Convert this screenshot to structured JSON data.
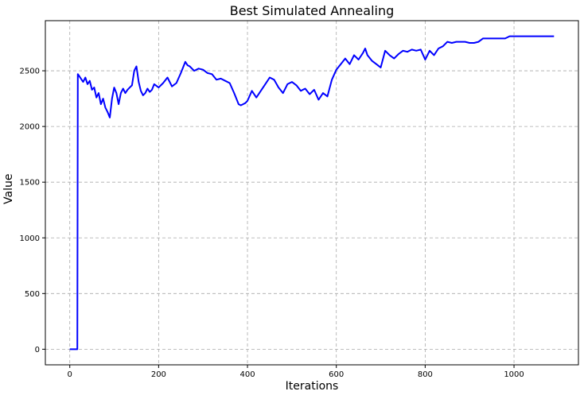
{
  "chart_data": {
    "type": "line",
    "title": "Best Simulated Annealing",
    "xlabel": "Iterations",
    "ylabel": "Value",
    "xlim": [
      -55,
      1145
    ],
    "ylim": [
      -140,
      2950
    ],
    "xticks": [
      0,
      200,
      400,
      600,
      800,
      1000
    ],
    "yticks": [
      0,
      500,
      1000,
      1500,
      2000,
      2500
    ],
    "xtick_labels": [
      "0",
      "200",
      "400",
      "600",
      "800",
      "1000"
    ],
    "ytick_labels": [
      "0",
      "500",
      "1000",
      "1500",
      "2000",
      "2500"
    ],
    "grid": true,
    "line_color": "#0000ff",
    "grid_color": "#aaaaaa",
    "series": [
      {
        "x": [
          0,
          17,
          18,
          20,
          25,
          30,
          35,
          40,
          45,
          50,
          55,
          60,
          65,
          70,
          75,
          80,
          85,
          90,
          95,
          100,
          105,
          110,
          115,
          120,
          125,
          130,
          135,
          140,
          145,
          150,
          155,
          160,
          165,
          170,
          175,
          180,
          185,
          190,
          200,
          210,
          220,
          230,
          240,
          250,
          260,
          265,
          270,
          280,
          290,
          300,
          310,
          320,
          330,
          340,
          350,
          360,
          370,
          380,
          385,
          390,
          395,
          400,
          410,
          420,
          430,
          440,
          450,
          460,
          470,
          480,
          490,
          500,
          510,
          520,
          530,
          540,
          550,
          560,
          570,
          580,
          590,
          600,
          610,
          620,
          630,
          640,
          650,
          660,
          665,
          670,
          680,
          690,
          700,
          710,
          720,
          730,
          740,
          750,
          760,
          770,
          780,
          790,
          800,
          810,
          820,
          830,
          840,
          850,
          860,
          870,
          880,
          890,
          900,
          910,
          920,
          930,
          940,
          950,
          960,
          970,
          980,
          990,
          1000,
          1010,
          1020,
          1040,
          1060,
          1090
        ],
        "y": [
          0,
          0,
          2470,
          2460,
          2430,
          2400,
          2440,
          2380,
          2410,
          2330,
          2350,
          2260,
          2300,
          2200,
          2250,
          2170,
          2130,
          2080,
          2250,
          2350,
          2300,
          2200,
          2300,
          2340,
          2300,
          2330,
          2350,
          2370,
          2500,
          2540,
          2400,
          2320,
          2280,
          2300,
          2340,
          2310,
          2330,
          2380,
          2350,
          2390,
          2440,
          2360,
          2390,
          2480,
          2580,
          2550,
          2540,
          2500,
          2520,
          2510,
          2480,
          2470,
          2420,
          2430,
          2410,
          2390,
          2300,
          2200,
          2190,
          2200,
          2210,
          2230,
          2320,
          2260,
          2320,
          2380,
          2440,
          2420,
          2350,
          2300,
          2380,
          2400,
          2370,
          2320,
          2340,
          2290,
          2330,
          2240,
          2300,
          2270,
          2420,
          2510,
          2560,
          2610,
          2560,
          2640,
          2600,
          2660,
          2700,
          2640,
          2590,
          2560,
          2530,
          2680,
          2640,
          2610,
          2650,
          2680,
          2670,
          2690,
          2680,
          2690,
          2600,
          2680,
          2640,
          2700,
          2720,
          2760,
          2750,
          2760,
          2760,
          2760,
          2750,
          2750,
          2760,
          2790,
          2790,
          2790,
          2790,
          2790,
          2790,
          2810,
          2810,
          2810,
          2810,
          2810,
          2810,
          2810
        ]
      }
    ]
  }
}
